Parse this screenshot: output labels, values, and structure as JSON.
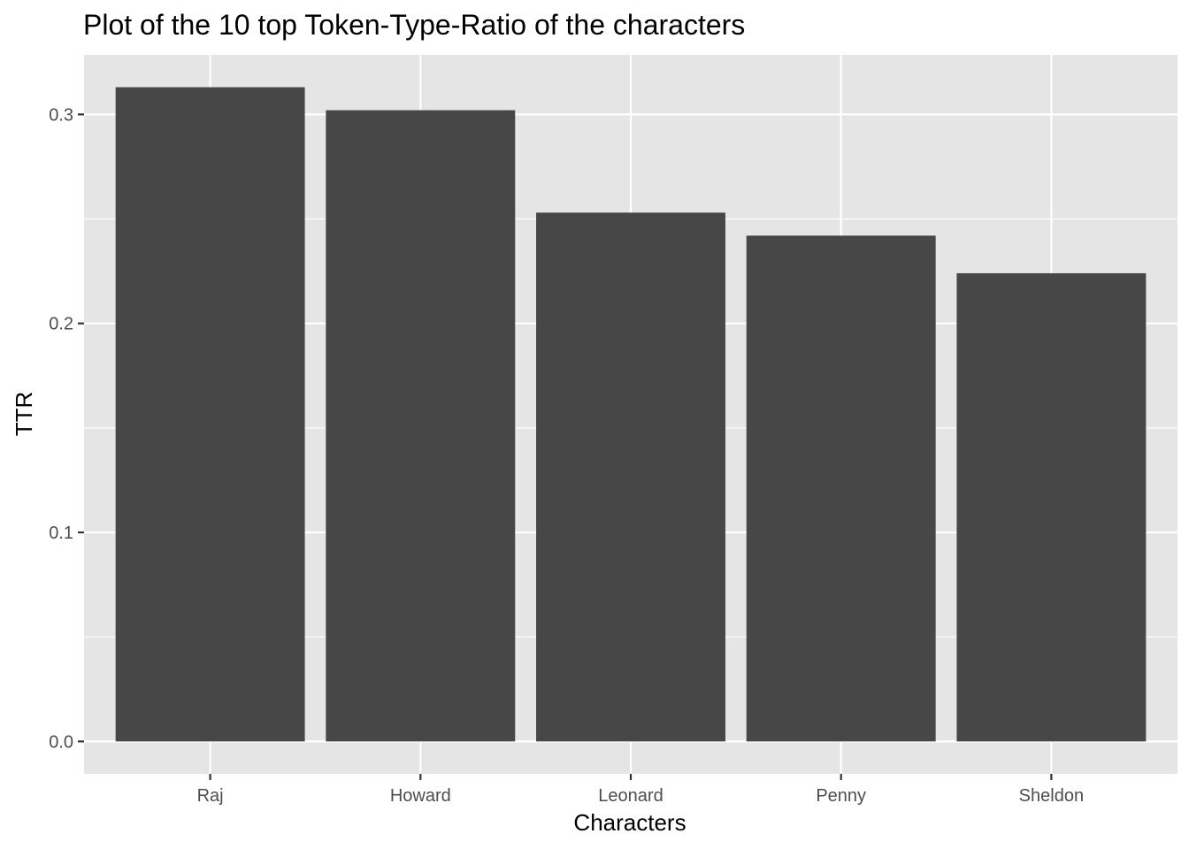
{
  "chart_data": {
    "type": "bar",
    "title": "Plot of the 10 top Token-Type-Ratio of the characters",
    "xlabel": "Characters",
    "ylabel": "TTR",
    "categories": [
      "Raj",
      "Howard",
      "Leonard",
      "Penny",
      "Sheldon"
    ],
    "values": [
      0.313,
      0.302,
      0.253,
      0.242,
      0.224
    ],
    "ylim": [
      -0.0155,
      0.3285
    ],
    "yticks": [
      0.0,
      0.1,
      0.2,
      0.3
    ],
    "ytick_labels": [
      "0.0",
      "0.1",
      "0.2",
      "0.3"
    ],
    "grid": true,
    "legend": "none",
    "colors": {
      "bar": "#474747",
      "panel_background": "#e5e5e5",
      "grid": "#ffffff",
      "tick": "#333333",
      "tick_label": "#4d4d4d"
    }
  }
}
